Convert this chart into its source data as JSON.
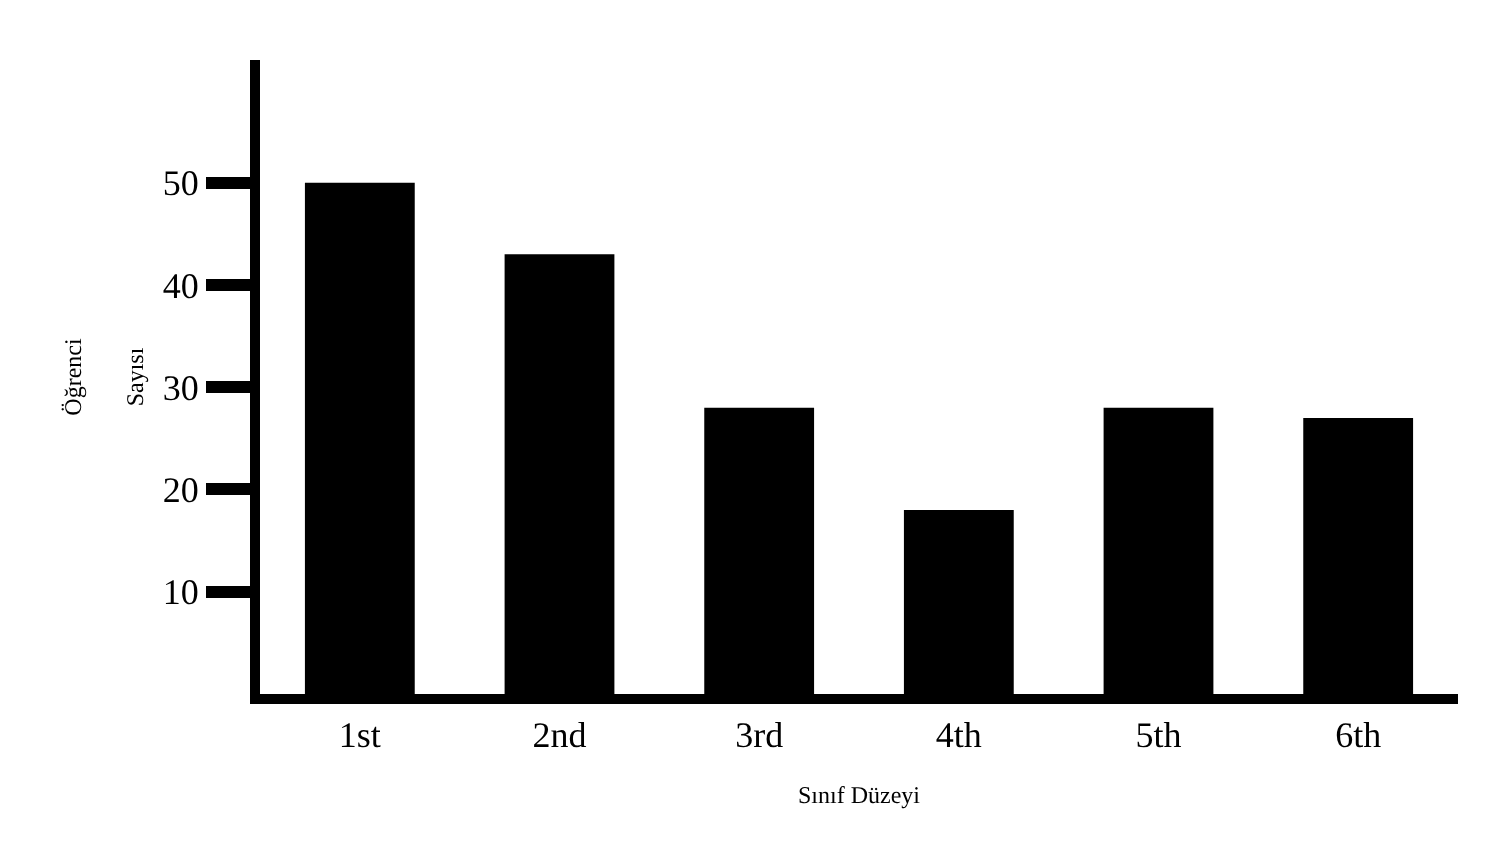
{
  "chart_data": {
    "type": "bar",
    "xlabel": "Sınıf Düzeyi",
    "ylabel": "Öğrenci Sayısı",
    "categories": [
      "1st",
      "2nd",
      "3rd",
      "4th",
      "5th",
      "6th"
    ],
    "values": [
      50,
      43,
      28,
      18,
      28,
      27
    ],
    "color": "#000000",
    "ylim": [
      0,
      62
    ],
    "yticks": [
      10,
      20,
      30,
      40,
      50
    ],
    "grid": false,
    "legend": false
  }
}
